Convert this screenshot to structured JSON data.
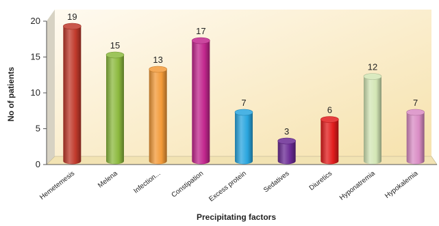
{
  "chart_data": {
    "type": "bar",
    "xlabel": "Precipitating factors",
    "ylabel": "No of patients",
    "ylim": [
      0,
      20
    ],
    "yticks": [
      0,
      5,
      10,
      15,
      20
    ],
    "grid": false,
    "categories": [
      "Hemetemesis",
      "Melena",
      "Infection...",
      "Constipation",
      "Excess protein",
      "Sedatives",
      "Diuretics",
      "Hyponatremia",
      "Hypokalemia"
    ],
    "values": [
      19,
      15,
      13,
      17,
      7,
      3,
      6,
      12,
      7
    ],
    "data_labels": [
      "19",
      "15",
      "13",
      "17",
      "7",
      "3",
      "6",
      "12",
      "7"
    ],
    "bar_colors": [
      "#c0392b",
      "#8cb93e",
      "#f39a38",
      "#c2278e",
      "#2aa6df",
      "#6a2a94",
      "#e21c1c",
      "#d3e6b5",
      "#d98cc4"
    ],
    "style": {
      "background": "#fbf0cf",
      "wall": "#d7d2c3",
      "floor": "#f2e3b3",
      "axis": "#555555",
      "text": "#222222"
    }
  }
}
